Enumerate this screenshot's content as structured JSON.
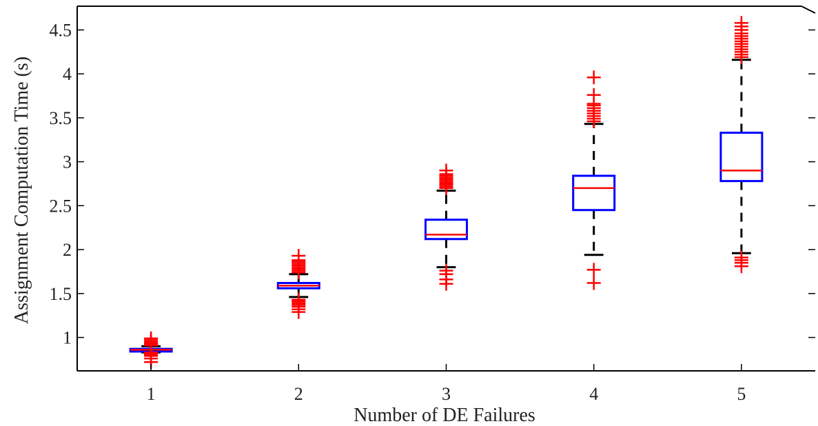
{
  "chart_data": {
    "type": "boxplot",
    "xlabel": "Number of DE Failures",
    "ylabel": "Assignment Computation Time (s)",
    "xlim": [
      0.5,
      5.5
    ],
    "ylim": [
      0.62,
      4.77
    ],
    "yticks": [
      1,
      1.5,
      2,
      2.5,
      3,
      3.5,
      4,
      4.5
    ],
    "yticklabels": [
      "1",
      "1.5",
      "2",
      "2.5",
      "3",
      "3.5",
      "4",
      "4.5"
    ],
    "categories": [
      "1",
      "2",
      "3",
      "4",
      "5"
    ],
    "boxes": [
      {
        "category": "1",
        "whisker_low": 0.83,
        "q1": 0.84,
        "median": 0.86,
        "q3": 0.87,
        "whisker_high": 0.9,
        "outliers": [
          0.72,
          0.76,
          0.79,
          0.8,
          0.81,
          0.82,
          0.83,
          0.91,
          0.92,
          0.93,
          0.94,
          0.95,
          0.97,
          0.99
        ]
      },
      {
        "category": "2",
        "whisker_low": 1.46,
        "q1": 1.56,
        "median": 1.59,
        "q3": 1.62,
        "whisker_high": 1.72,
        "outliers": [
          1.29,
          1.32,
          1.35,
          1.37,
          1.39,
          1.41,
          1.43,
          1.74,
          1.76,
          1.78,
          1.8,
          1.82,
          1.84,
          1.86,
          1.88,
          1.93
        ]
      },
      {
        "category": "3",
        "whisker_low": 1.8,
        "q1": 2.12,
        "median": 2.17,
        "q3": 2.34,
        "whisker_high": 2.67,
        "outliers": [
          1.61,
          1.66,
          1.72,
          1.76,
          2.7,
          2.72,
          2.74,
          2.76,
          2.78,
          2.8,
          2.82,
          2.84,
          2.86,
          2.9
        ]
      },
      {
        "category": "4",
        "whisker_low": 1.94,
        "q1": 2.45,
        "median": 2.7,
        "q3": 2.84,
        "whisker_high": 3.43,
        "outliers": [
          1.62,
          1.77,
          3.46,
          3.49,
          3.52,
          3.55,
          3.58,
          3.61,
          3.64,
          3.66,
          3.76,
          3.96
        ]
      },
      {
        "category": "5",
        "whisker_low": 1.96,
        "q1": 2.78,
        "median": 2.9,
        "q3": 3.33,
        "whisker_high": 4.16,
        "outliers": [
          1.81,
          1.85,
          1.88,
          1.91,
          4.19,
          4.22,
          4.25,
          4.28,
          4.31,
          4.34,
          4.37,
          4.4,
          4.43,
          4.46,
          4.5,
          4.54,
          4.58
        ]
      }
    ],
    "colors": {
      "box": "#0000ff",
      "median": "#ff0000",
      "outlier": "#ff0000",
      "whisker": "#000000",
      "axes": "#000000"
    },
    "grid": false
  }
}
